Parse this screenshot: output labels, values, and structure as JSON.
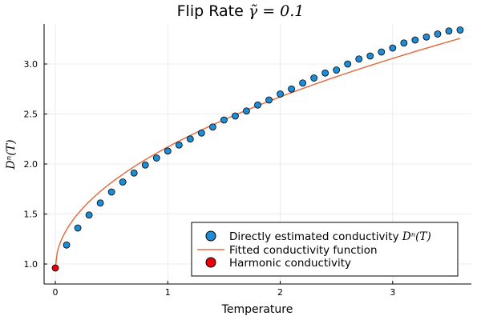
{
  "chart_data": {
    "type": "scatter",
    "title": "Flip Rate ",
    "title_math": "γ̃ = 0.1",
    "xlabel": "Temperature",
    "ylabel": "Dⁿ(T)",
    "xlim": [
      -0.1,
      3.7
    ],
    "ylim": [
      0.8,
      3.4
    ],
    "xticks": [
      0,
      1,
      2,
      3
    ],
    "yticks": [
      1.0,
      1.5,
      2.0,
      2.5,
      3.0
    ],
    "xtick_labels": [
      "0",
      "1",
      "2",
      "3"
    ],
    "ytick_labels": [
      "1.0",
      "1.5",
      "2.0",
      "2.5",
      "3.0"
    ],
    "grid": true,
    "legend_position": "bottom-right",
    "series": [
      {
        "name": "Directly estimated conductivity ",
        "name_math": "Dⁿ(T)",
        "kind": "scatter",
        "color": "#1f8dd6",
        "x": [
          0.1,
          0.2,
          0.3,
          0.4,
          0.5,
          0.6,
          0.7,
          0.8,
          0.9,
          1.0,
          1.1,
          1.2,
          1.3,
          1.4,
          1.5,
          1.6,
          1.7,
          1.8,
          1.9,
          2.0,
          2.1,
          2.2,
          2.3,
          2.4,
          2.5,
          2.6,
          2.7,
          2.8,
          2.9,
          3.0,
          3.1,
          3.2,
          3.3,
          3.4,
          3.5,
          3.6
        ],
        "y": [
          1.19,
          1.36,
          1.49,
          1.61,
          1.72,
          1.82,
          1.91,
          1.99,
          2.06,
          2.13,
          2.19,
          2.25,
          2.31,
          2.37,
          2.44,
          2.48,
          2.53,
          2.59,
          2.64,
          2.7,
          2.75,
          2.81,
          2.86,
          2.91,
          2.94,
          3.0,
          3.05,
          3.08,
          3.12,
          3.16,
          3.21,
          3.24,
          3.27,
          3.3,
          3.33,
          3.34
        ]
      },
      {
        "name": "Fitted conductivity function",
        "kind": "line",
        "color": "#e26f46",
        "model": {
          "a": 0.96,
          "b": 1.21,
          "p": 0.5
        },
        "x_range": [
          0,
          3.6
        ]
      },
      {
        "name": "Harmonic conductivity",
        "kind": "scatter",
        "color": "#e8000b",
        "x": [
          0
        ],
        "y": [
          0.96
        ]
      }
    ]
  }
}
